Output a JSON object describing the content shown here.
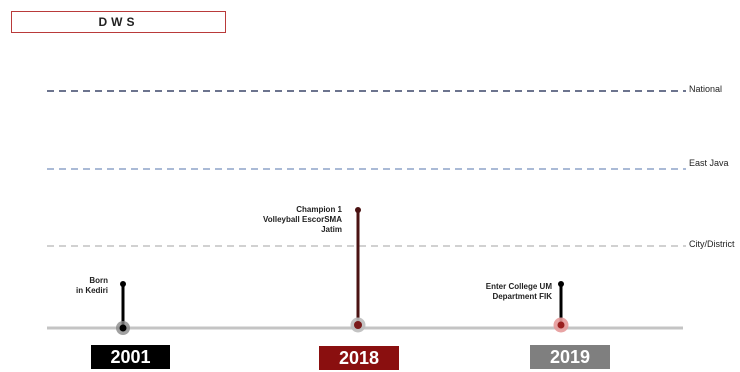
{
  "header": {
    "title": "DWS"
  },
  "levels": [
    {
      "label": "National",
      "color": "#3b4668"
    },
    {
      "label": "East Java",
      "color": "#8ea4c8"
    },
    {
      "label": "City/District",
      "color": "#c2c2c2"
    }
  ],
  "timeline": {
    "events": [
      {
        "year": "2001",
        "text": "Born\nin Kediri",
        "year_bg": "#000000",
        "stem_color": "#000000",
        "dot_ring": "#8a8a8a"
      },
      {
        "year": "2018",
        "text": "Champion 1\nVolleyball EscorSMA\nJatim",
        "year_bg": "#8a0f0f",
        "stem_color": "#4a1212",
        "dot_ring": "#c97a7a"
      },
      {
        "year": "2019",
        "text": "Enter College UM\nDepartment  FIK",
        "year_bg": "#7f7f7f",
        "stem_color": "#000000",
        "dot_ring": "#e59a9a"
      }
    ]
  }
}
